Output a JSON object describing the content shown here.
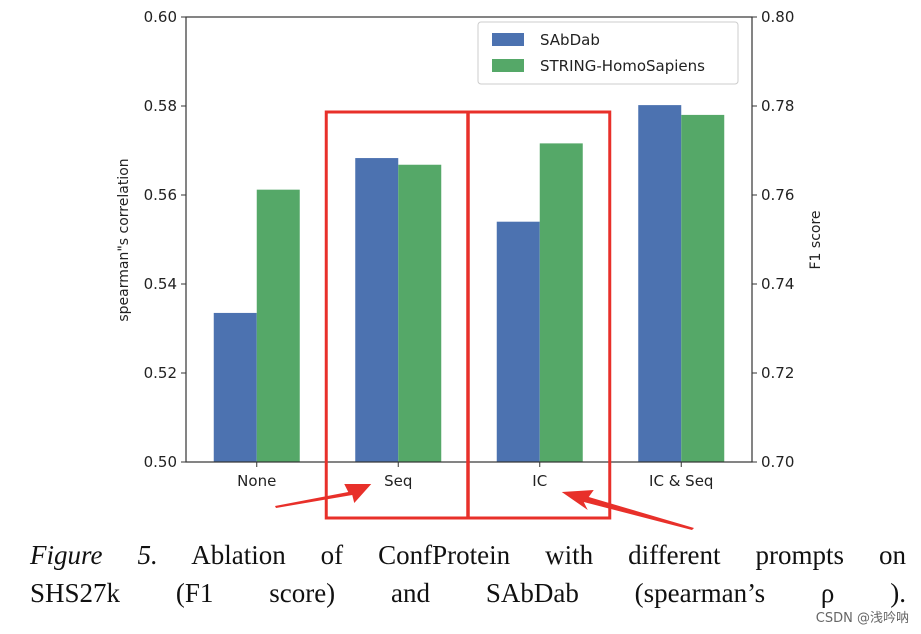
{
  "chart_data": {
    "type": "bar",
    "categories": [
      "None",
      "Seq",
      "IC",
      "IC & Seq"
    ],
    "series": [
      {
        "name": "SAbDab",
        "axis": "left",
        "color": "#4c72b0",
        "values": [
          0.5335,
          0.5683,
          0.554,
          0.5802
        ]
      },
      {
        "name": "STRING-HomoSapiens",
        "axis": "right",
        "color": "#55a868",
        "values": [
          0.7612,
          0.7668,
          0.7716,
          0.778
        ]
      }
    ],
    "ylabel": "spearman\"s correlation",
    "ylabel_right": "F1 score",
    "ylim": [
      0.5,
      0.6
    ],
    "ylim_right": [
      0.7,
      0.8
    ],
    "yticks": [
      "0.50",
      "0.52",
      "0.54",
      "0.56",
      "0.58",
      "0.60"
    ],
    "yticks_right": [
      "0.70",
      "0.72",
      "0.74",
      "0.76",
      "0.78",
      "0.80"
    ],
    "legend_position": "top-right",
    "annotations": {
      "highlight_boxes": [
        "Seq",
        "IC"
      ],
      "arrows_to": [
        "Seq",
        "IC"
      ],
      "highlight_color": "#e8302a"
    }
  },
  "caption": {
    "figure_label": "Figure 5.",
    "line1_text": " Ablation of ConfProtein with different prompts on",
    "line2_text": "SHS27k (F1 score) and SAbDab (spearman’s ρ )."
  },
  "watermark": "CSDN @浅吟呐"
}
